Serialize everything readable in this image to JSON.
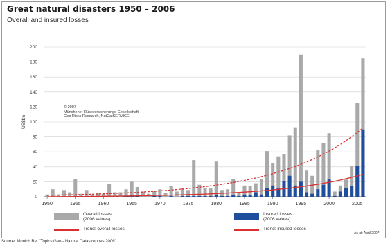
{
  "title": "Great natural disasters 1950 – 2006",
  "subtitle": "Overall and insured losses",
  "copyright": [
    "© 2007",
    "Münchener Rückversicherungs-Gesellschaft",
    "Geo Risks Research, NatCatSERVICE"
  ],
  "as_of": "As at: April 2007",
  "source": "Source: Munich Re, \"Topics Geo - Natural Catastrophes 2006\"",
  "colors": {
    "overall": "#a9a9a9",
    "insured": "#1f4e9c",
    "trend_overall": "#d93030",
    "trend_insured": "#d93030",
    "grid": "#cfcfcf"
  },
  "legend": {
    "overall_losses": [
      "Overall losses",
      "(2006 values)"
    ],
    "insured_losses": [
      "Insured losses",
      "(2006 values)"
    ],
    "trend_overall": "Trend: overall losses",
    "trend_insured": "Trend: insured losses"
  },
  "chart_data": {
    "type": "bar",
    "title": "Great natural disasters 1950 – 2006",
    "subtitle": "Overall and insured losses",
    "ylabel": "US$bn",
    "xlabel": "",
    "ylim": [
      0,
      200
    ],
    "yticks": [
      0,
      20,
      40,
      60,
      80,
      100,
      120,
      140,
      160,
      180,
      200
    ],
    "xticks": [
      1950,
      1955,
      1960,
      1965,
      1970,
      1975,
      1980,
      1985,
      1990,
      1995,
      2000,
      2005
    ],
    "grid": true,
    "categories": [
      1950,
      1951,
      1952,
      1953,
      1954,
      1955,
      1956,
      1957,
      1958,
      1959,
      1960,
      1961,
      1962,
      1963,
      1964,
      1965,
      1966,
      1967,
      1968,
      1969,
      1970,
      1971,
      1972,
      1973,
      1974,
      1975,
      1976,
      1977,
      1978,
      1979,
      1980,
      1981,
      1982,
      1983,
      1984,
      1985,
      1986,
      1987,
      1988,
      1989,
      1990,
      1991,
      1992,
      1993,
      1994,
      1995,
      1996,
      1997,
      1998,
      1999,
      2000,
      2001,
      2002,
      2003,
      2004,
      2005,
      2006
    ],
    "series": [
      {
        "name": "Overall losses (2006 values)",
        "values": [
          3,
          10,
          3,
          9,
          6,
          24,
          4,
          9,
          3,
          5,
          4,
          17,
          6,
          6,
          10,
          20,
          13,
          7,
          4,
          8,
          10,
          5,
          14,
          7,
          12,
          9,
          49,
          16,
          12,
          11,
          47,
          9,
          10,
          24,
          5,
          15,
          14,
          18,
          24,
          61,
          45,
          54,
          57,
          82,
          92,
          190,
          35,
          28,
          62,
          72,
          85,
          7,
          15,
          23,
          41,
          125,
          185
        ]
      },
      {
        "name": "Insured losses (2006 values)",
        "values": [
          0,
          0,
          0,
          0,
          0,
          1,
          0,
          0,
          0,
          0,
          0,
          0,
          0,
          0,
          1,
          2,
          1,
          0,
          0,
          1,
          1,
          0,
          1,
          0,
          1,
          1,
          1,
          1,
          1,
          1,
          3,
          1,
          1,
          2,
          1,
          3,
          2,
          6,
          3,
          12,
          15,
          11,
          21,
          28,
          15,
          20,
          6,
          4,
          10,
          16,
          23,
          1,
          7,
          12,
          14,
          41,
          90
        ]
      }
    ],
    "trend_lines": [
      {
        "name": "Trend: overall losses",
        "x": [
          1950,
          2006
        ],
        "y": [
          2,
          92
        ],
        "style": "dashed"
      },
      {
        "name": "Trend: insured losses",
        "x": [
          1950,
          2006
        ],
        "y": [
          0,
          30
        ],
        "style": "solid"
      }
    ],
    "legend_position": "bottom"
  }
}
